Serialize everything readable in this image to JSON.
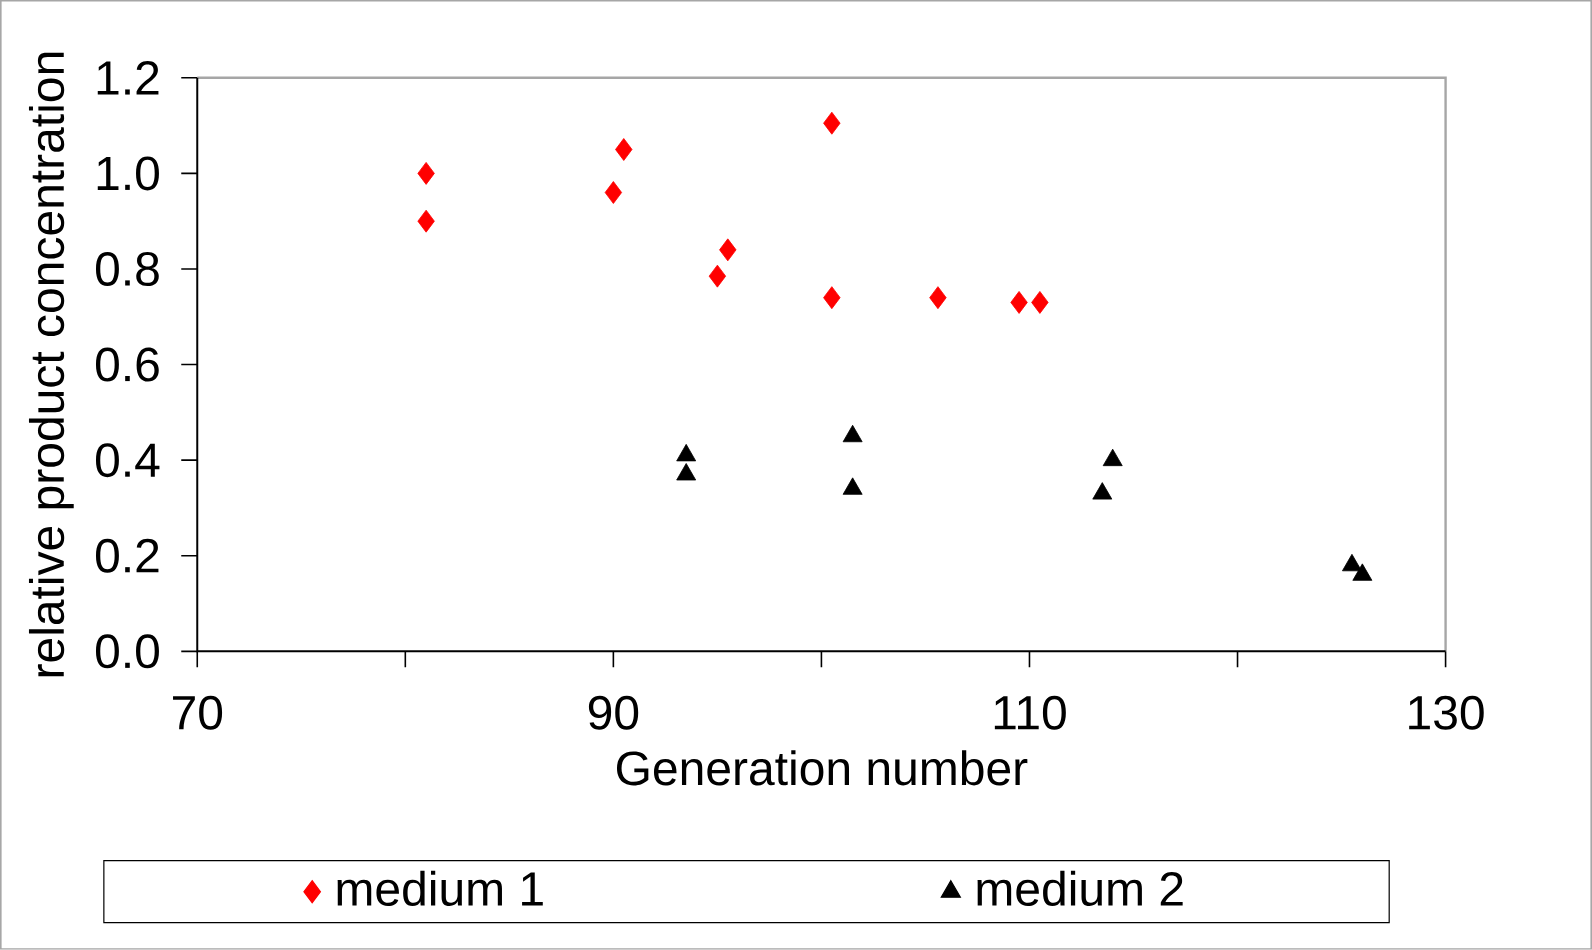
{
  "chart_data": {
    "type": "scatter",
    "xlabel": "Generation number",
    "ylabel": "relative product concentration",
    "xlim": [
      70,
      130
    ],
    "xticks": [
      70,
      {
        "value": 80,
        "label": null
      },
      90,
      {
        "value": 100,
        "label": null
      },
      110,
      {
        "value": 120,
        "label": null
      },
      130
    ],
    "ylim": [
      0,
      1.2
    ],
    "yticks": [
      {
        "value": 0,
        "label": "0.0"
      },
      0.2,
      0.4,
      0.6,
      0.8,
      {
        "value": 1,
        "label": "1.0"
      },
      1.2
    ],
    "legend": "bottom",
    "series": [
      {
        "name": "medium 1",
        "color": "#ff0000",
        "marker": "diamond",
        "x": [
          81,
          81,
          90,
          90.5,
          95,
          95.5,
          100.5,
          100.5,
          105.6,
          109.5,
          110.5
        ],
        "values": [
          1.0,
          0.9,
          0.96,
          1.05,
          0.785,
          0.84,
          1.105,
          0.74,
          0.74,
          0.73,
          0.73
        ]
      },
      {
        "name": "medium 2",
        "color": "#000000",
        "marker": "triangle",
        "x": [
          93.5,
          93.5,
          101.5,
          101.5,
          113.5,
          114,
          125.5,
          126
        ],
        "values": [
          0.41,
          0.37,
          0.45,
          0.34,
          0.33,
          0.4,
          0.18,
          0.16
        ]
      }
    ]
  }
}
